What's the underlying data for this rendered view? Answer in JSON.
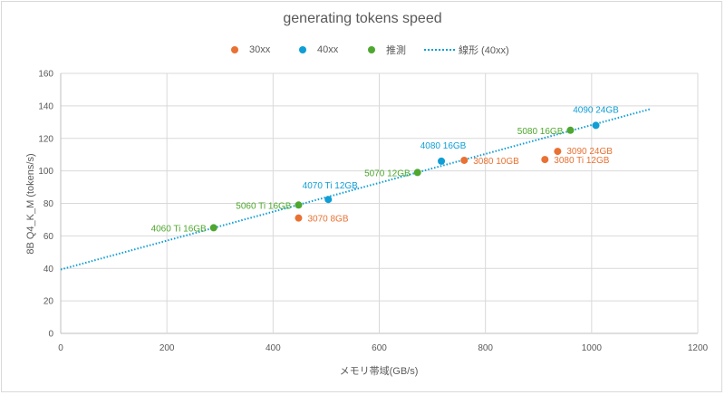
{
  "chart_data": {
    "type": "scatter",
    "title": "generating tokens speed",
    "xlabel": "メモリ帯域(GB/s)",
    "ylabel": "8B Q4_K_M (tokens/s)",
    "xlim": [
      0,
      1200
    ],
    "ylim": [
      0,
      160
    ],
    "xticks": [
      0,
      200,
      400,
      600,
      800,
      1000,
      1200
    ],
    "yticks": [
      0,
      20,
      40,
      60,
      80,
      100,
      120,
      140,
      160
    ],
    "grid": true,
    "legend_position": "top",
    "legend": [
      "30xx",
      "40xx",
      "推測",
      "線形 (40xx)"
    ],
    "series": [
      {
        "name": "30xx",
        "color": "#E97132",
        "points": [
          {
            "label": "3070 8GB",
            "x": 448,
            "y": 71
          },
          {
            "label": "3080 10GB",
            "x": 760,
            "y": 106.5
          },
          {
            "label": "3080 Ti 12GB",
            "x": 912,
            "y": 107
          },
          {
            "label": "3090 24GB",
            "x": 936,
            "y": 112
          }
        ]
      },
      {
        "name": "40xx",
        "color": "#0F9ED5",
        "points": [
          {
            "label": "4070 Ti 12GB",
            "x": 504,
            "y": 82.4
          },
          {
            "label": "4080 16GB",
            "x": 717,
            "y": 106
          },
          {
            "label": "4090 24GB",
            "x": 1008,
            "y": 128
          }
        ]
      },
      {
        "name": "推測",
        "color": "#4EA72E",
        "points": [
          {
            "label": "4060 Ti 16GB",
            "x": 288,
            "y": 65
          },
          {
            "label": "5060 Ti 16GB",
            "x": 448,
            "y": 79
          },
          {
            "label": "5070 12GB",
            "x": 672,
            "y": 99
          },
          {
            "label": "5080 16GB",
            "x": 960,
            "y": 125
          }
        ]
      }
    ],
    "trendline": {
      "name": "線形 (40xx)",
      "type": "linear",
      "color": "#0F9ED5",
      "style": "dotted",
      "x0": 0,
      "y0": 39.3,
      "x1": 1110,
      "y1": 138
    }
  },
  "legend": {
    "items": [
      {
        "label": "30xx",
        "color": "#E97132"
      },
      {
        "label": "40xx",
        "color": "#0F9ED5"
      },
      {
        "label": "推測",
        "color": "#4EA72E"
      },
      {
        "label": "線形 (40xx)",
        "color": "#0F9ED5"
      }
    ]
  }
}
